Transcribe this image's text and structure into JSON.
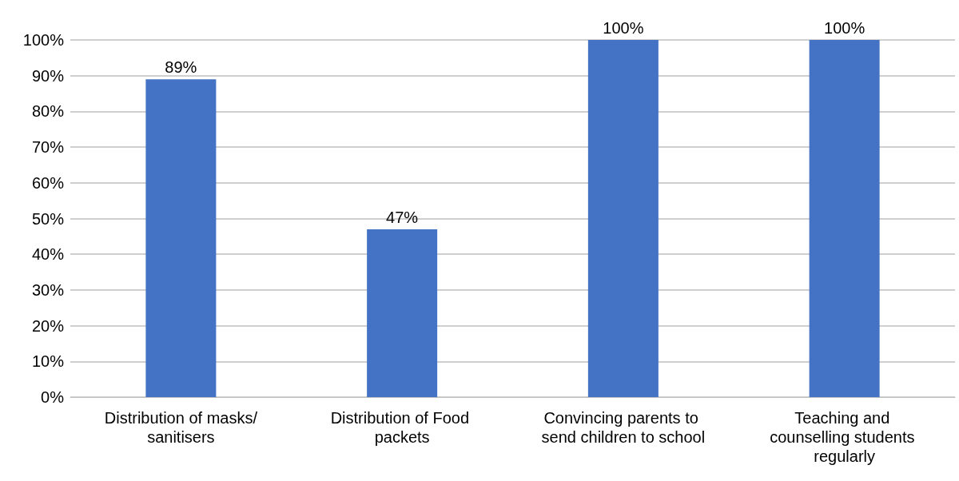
{
  "chart_data": {
    "type": "bar",
    "categories": [
      "Distribution of masks/sanitisers",
      "Distribution of Food packets",
      "Convincing parents to send children to school",
      "Teaching and counselling students regularly"
    ],
    "values": [
      89,
      47,
      100,
      100
    ],
    "color": "#4472c4",
    "value_labels": [
      "89%",
      "47%",
      "100%",
      "100%"
    ],
    "ylim": [
      0,
      100
    ],
    "yticks": [
      {
        "value": 0,
        "label": "0%"
      },
      {
        "value": 10,
        "label": "10%"
      },
      {
        "value": 20,
        "label": "20%"
      },
      {
        "value": 30,
        "label": "30%"
      },
      {
        "value": 40,
        "label": "40%"
      },
      {
        "value": 50,
        "label": "50%"
      },
      {
        "value": 60,
        "label": "60%"
      },
      {
        "value": 70,
        "label": "70%"
      },
      {
        "value": 80,
        "label": "80%"
      },
      {
        "value": 90,
        "label": "90%"
      },
      {
        "value": 100,
        "label": "100%"
      }
    ],
    "grid": true
  }
}
